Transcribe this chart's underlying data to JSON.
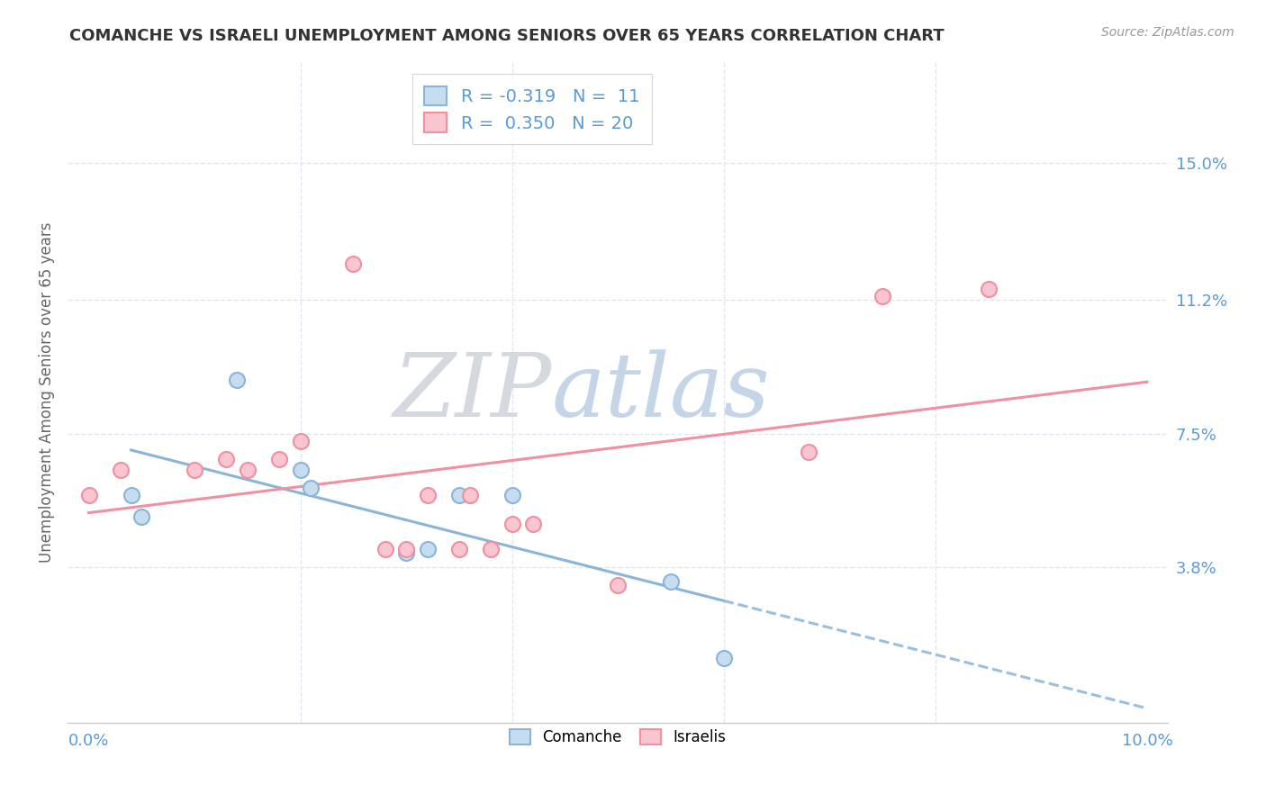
{
  "title": "COMANCHE VS ISRAELI UNEMPLOYMENT AMONG SENIORS OVER 65 YEARS CORRELATION CHART",
  "source": "Source: ZipAtlas.com",
  "ylabel": "Unemployment Among Seniors over 65 years",
  "y_tick_values": [
    0.038,
    0.075,
    0.112,
    0.15
  ],
  "y_tick_labels": [
    "3.8%",
    "7.5%",
    "11.2%",
    "15.0%"
  ],
  "x_tick_values": [
    0.0,
    0.1
  ],
  "x_tick_labels": [
    "0.0%",
    "10.0%"
  ],
  "xlim": [
    -0.002,
    0.102
  ],
  "ylim": [
    -0.005,
    0.178
  ],
  "comanche_R": "-0.319",
  "comanche_N": "11",
  "israelis_R": "0.350",
  "israelis_N": "20",
  "comanche_fill": "#c5ddef",
  "comanche_edge": "#8ab4d8",
  "israelis_fill": "#f9c5d0",
  "israelis_edge": "#f090a0",
  "comanche_line": "#8ab4d8",
  "israelis_line": "#f090a0",
  "grid_color": "#e2e6f0",
  "label_color": "#5b9bd5",
  "title_color": "#333333",
  "ylabel_color": "#666666",
  "watermark_zip_color": "#d5d8de",
  "watermark_atlas_color": "#c5d5e8",
  "comanche_x": [
    0.004,
    0.005,
    0.014,
    0.02,
    0.021,
    0.03,
    0.032,
    0.035,
    0.04,
    0.055,
    0.06
  ],
  "comanche_y": [
    0.058,
    0.052,
    0.09,
    0.065,
    0.06,
    0.042,
    0.043,
    0.058,
    0.058,
    0.034,
    0.013
  ],
  "israelis_x": [
    0.0,
    0.003,
    0.01,
    0.013,
    0.015,
    0.018,
    0.02,
    0.025,
    0.028,
    0.03,
    0.032,
    0.035,
    0.036,
    0.038,
    0.04,
    0.042,
    0.05,
    0.068,
    0.075,
    0.085
  ],
  "israelis_y": [
    0.058,
    0.065,
    0.065,
    0.068,
    0.065,
    0.068,
    0.073,
    0.122,
    0.043,
    0.043,
    0.058,
    0.043,
    0.058,
    0.043,
    0.05,
    0.05,
    0.033,
    0.07,
    0.113,
    0.115
  ]
}
